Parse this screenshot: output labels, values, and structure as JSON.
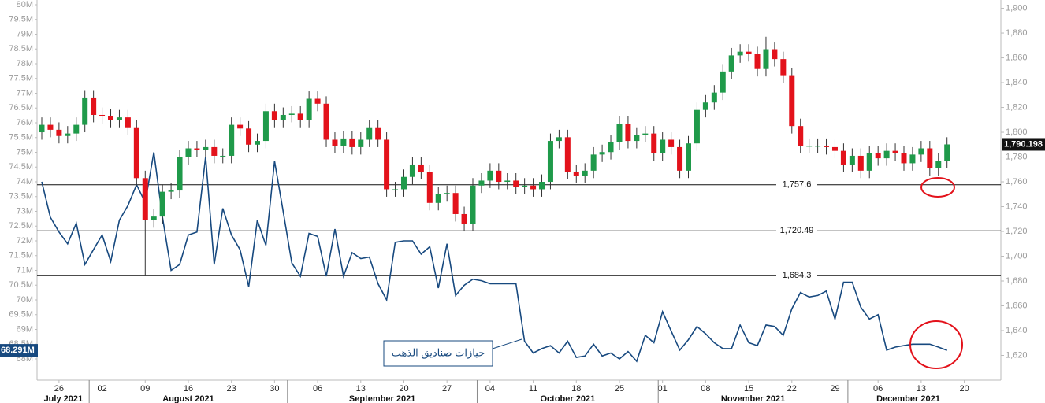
{
  "chart_data": {
    "type": "candlestick",
    "categories": [
      "2021-07-22",
      "2021-07-23",
      "2021-07-26",
      "2021-07-27",
      "2021-07-28",
      "2021-07-29",
      "2021-07-30",
      "2021-08-02",
      "2021-08-03",
      "2021-08-04",
      "2021-08-05",
      "2021-08-06",
      "2021-08-09",
      "2021-08-10",
      "2021-08-11",
      "2021-08-12",
      "2021-08-13",
      "2021-08-16",
      "2021-08-17",
      "2021-08-18",
      "2021-08-19",
      "2021-08-20",
      "2021-08-23",
      "2021-08-24",
      "2021-08-25",
      "2021-08-26",
      "2021-08-27",
      "2021-08-30",
      "2021-08-31",
      "2021-09-01",
      "2021-09-02",
      "2021-09-03",
      "2021-09-06",
      "2021-09-07",
      "2021-09-08",
      "2021-09-09",
      "2021-09-10",
      "2021-09-13",
      "2021-09-14",
      "2021-09-15",
      "2021-09-16",
      "2021-09-17",
      "2021-09-20",
      "2021-09-21",
      "2021-09-22",
      "2021-09-23",
      "2021-09-24",
      "2021-09-27",
      "2021-09-28",
      "2021-09-29",
      "2021-09-30",
      "2021-10-01",
      "2021-10-04",
      "2021-10-05",
      "2021-10-06",
      "2021-10-07",
      "2021-10-08",
      "2021-10-11",
      "2021-10-12",
      "2021-10-13",
      "2021-10-14",
      "2021-10-15",
      "2021-10-18",
      "2021-10-19",
      "2021-10-20",
      "2021-10-21",
      "2021-10-22",
      "2021-10-25",
      "2021-10-26",
      "2021-10-27",
      "2021-10-28",
      "2021-10-29",
      "2021-11-01",
      "2021-11-02",
      "2021-11-03",
      "2021-11-04",
      "2021-11-05",
      "2021-11-08",
      "2021-11-09",
      "2021-11-10",
      "2021-11-11",
      "2021-11-12",
      "2021-11-15",
      "2021-11-16",
      "2021-11-17",
      "2021-11-18",
      "2021-11-19",
      "2021-11-22",
      "2021-11-23",
      "2021-11-24",
      "2021-11-25",
      "2021-11-26",
      "2021-11-29",
      "2021-11-30",
      "2021-12-01",
      "2021-12-02",
      "2021-12-03",
      "2021-12-06",
      "2021-12-07",
      "2021-12-08",
      "2021-12-09",
      "2021-12-10",
      "2021-12-13",
      "2021-12-14",
      "2021-12-15",
      "2021-12-16"
    ],
    "candles": {
      "axis": "y2",
      "up_color": "#1f9a4a",
      "down_color": "#e3121b",
      "last_label": "1,790.198",
      "open": [
        1800,
        1806,
        1802,
        1797,
        1799,
        1806,
        1828,
        1814,
        1813,
        1810,
        1812,
        1804,
        1763,
        1729,
        1732,
        1752,
        1753,
        1780,
        1787,
        1786,
        1788,
        1781,
        1781,
        1806,
        1803,
        1790,
        1793,
        1817,
        1810,
        1814,
        1815,
        1810,
        1827,
        1823,
        1794,
        1789,
        1795,
        1788,
        1794,
        1804,
        1794,
        1754,
        1754,
        1764,
        1774,
        1768,
        1743,
        1750,
        1751,
        1734,
        1726,
        1757,
        1761,
        1769,
        1760,
        1761,
        1756,
        1757,
        1754,
        1760,
        1793,
        1796,
        1768,
        1765,
        1769,
        1782,
        1784,
        1792,
        1807,
        1793,
        1798,
        1799,
        1783,
        1794,
        1788,
        1769,
        1791,
        1818,
        1824,
        1832,
        1849,
        1862,
        1865,
        1863,
        1851,
        1867,
        1859,
        1846,
        1805,
        1789,
        1789,
        1789,
        1788,
        1785,
        1774,
        1781,
        1769,
        1783,
        1779,
        1785,
        1783,
        1775,
        1782,
        1787,
        1771,
        1777
      ],
      "high": [
        1812,
        1812,
        1808,
        1805,
        1812,
        1834,
        1834,
        1820,
        1819,
        1818,
        1818,
        1810,
        1769,
        1738,
        1758,
        1759,
        1786,
        1793,
        1793,
        1794,
        1794,
        1787,
        1812,
        1812,
        1809,
        1799,
        1823,
        1823,
        1820,
        1821,
        1821,
        1833,
        1833,
        1829,
        1800,
        1801,
        1801,
        1800,
        1810,
        1810,
        1800,
        1760,
        1770,
        1780,
        1780,
        1774,
        1756,
        1757,
        1757,
        1740,
        1763,
        1767,
        1775,
        1775,
        1767,
        1767,
        1763,
        1763,
        1766,
        1799,
        1802,
        1802,
        1774,
        1775,
        1788,
        1790,
        1798,
        1813,
        1813,
        1804,
        1805,
        1805,
        1800,
        1800,
        1794,
        1797,
        1824,
        1830,
        1838,
        1855,
        1868,
        1871,
        1871,
        1869,
        1877,
        1873,
        1865,
        1852,
        1811,
        1795,
        1795,
        1795,
        1794,
        1791,
        1787,
        1787,
        1789,
        1789,
        1791,
        1791,
        1789,
        1788,
        1793,
        1793,
        1783,
        1796
      ],
      "low": [
        1794,
        1796,
        1791,
        1791,
        1793,
        1800,
        1808,
        1807,
        1804,
        1804,
        1798,
        1757,
        1684,
        1723,
        1726,
        1746,
        1747,
        1774,
        1780,
        1780,
        1775,
        1775,
        1775,
        1797,
        1784,
        1784,
        1787,
        1804,
        1804,
        1808,
        1804,
        1804,
        1817,
        1788,
        1783,
        1783,
        1782,
        1782,
        1788,
        1788,
        1748,
        1748,
        1748,
        1758,
        1762,
        1737,
        1737,
        1744,
        1728,
        1720,
        1720,
        1751,
        1755,
        1754,
        1754,
        1750,
        1750,
        1748,
        1748,
        1754,
        1787,
        1762,
        1759,
        1759,
        1763,
        1776,
        1778,
        1786,
        1787,
        1787,
        1792,
        1777,
        1777,
        1782,
        1763,
        1763,
        1785,
        1812,
        1818,
        1826,
        1843,
        1856,
        1857,
        1845,
        1845,
        1853,
        1840,
        1799,
        1783,
        1783,
        1783,
        1782,
        1779,
        1768,
        1768,
        1763,
        1763,
        1773,
        1773,
        1777,
        1769,
        1769,
        1776,
        1765,
        1765,
        1771
      ],
      "close": [
        1806,
        1802,
        1797,
        1799,
        1806,
        1828,
        1814,
        1813,
        1810,
        1812,
        1804,
        1763,
        1729,
        1732,
        1752,
        1753,
        1780,
        1787,
        1786,
        1788,
        1781,
        1781,
        1806,
        1803,
        1790,
        1793,
        1817,
        1810,
        1814,
        1815,
        1810,
        1827,
        1823,
        1794,
        1789,
        1795,
        1788,
        1794,
        1804,
        1794,
        1754,
        1754,
        1764,
        1774,
        1768,
        1743,
        1750,
        1751,
        1734,
        1726,
        1757,
        1761,
        1769,
        1760,
        1761,
        1756,
        1757,
        1754,
        1760,
        1793,
        1796,
        1768,
        1765,
        1769,
        1782,
        1784,
        1792,
        1807,
        1793,
        1798,
        1799,
        1783,
        1794,
        1788,
        1769,
        1791,
        1818,
        1824,
        1832,
        1849,
        1862,
        1865,
        1863,
        1851,
        1867,
        1859,
        1846,
        1805,
        1789,
        1789,
        1789,
        1788,
        1785,
        1774,
        1781,
        1769,
        1783,
        1779,
        1785,
        1783,
        1775,
        1782,
        1787,
        1771,
        1777,
        1790.198
      ]
    },
    "line": {
      "color": "#17497f",
      "last_label": "68.291M",
      "annotation": "حيازات صناديق الذهب",
      "values": [
        74.0,
        72.8,
        72.3,
        71.9,
        72.6,
        71.2,
        71.7,
        72.2,
        71.3,
        72.7,
        73.2,
        73.9,
        73.3,
        75.0,
        72.8,
        71.0,
        71.2,
        72.2,
        72.3,
        74.85,
        71.2,
        73.1,
        72.2,
        71.7,
        70.45,
        72.7,
        71.85,
        74.7,
        73.0,
        71.25,
        70.8,
        72.25,
        72.15,
        70.8,
        72.4,
        70.8,
        71.6,
        71.4,
        71.45,
        70.55,
        70.0,
        71.95,
        72.0,
        72.0,
        71.55,
        71.8,
        70.4,
        71.9,
        70.15,
        70.5,
        70.7,
        70.65,
        70.55,
        70.55,
        70.55,
        70.55,
        68.6,
        68.2,
        68.35,
        68.45,
        68.2,
        68.6,
        68.05,
        68.1,
        68.5,
        68.1,
        68.2,
        68.0,
        68.25,
        67.92,
        68.8,
        68.55,
        69.6,
        68.95,
        68.3,
        68.65,
        69.1,
        68.85,
        68.55,
        68.35,
        68.35,
        69.15,
        68.55,
        68.45,
        69.15,
        69.1,
        68.8,
        69.7,
        70.25,
        70.1,
        70.15,
        70.3,
        69.35,
        70.6,
        70.6,
        69.75,
        69.35,
        69.5,
        68.3,
        68.4,
        68.45,
        68.5,
        68.5,
        68.5,
        68.4,
        68.291
      ]
    },
    "levels": [
      {
        "value": 1757.6,
        "label": "1,757.6"
      },
      {
        "value": 1720.49,
        "label": "1,720.49"
      },
      {
        "value": 1684.3,
        "label": "1,684.3"
      }
    ],
    "ylim": [
      67.28,
      80.16
    ],
    "yticks": [
      {
        "value": 68,
        "label": "68M"
      },
      {
        "value": 68.5,
        "label": "68.5M"
      },
      {
        "value": 69,
        "label": "69M"
      },
      {
        "value": 69.5,
        "label": "69.5M"
      },
      {
        "value": 70,
        "label": "70M"
      },
      {
        "value": 70.5,
        "label": "70.5M"
      },
      {
        "value": 71,
        "label": "71M"
      },
      {
        "value": 71.5,
        "label": "71.5M"
      },
      {
        "value": 72,
        "label": "72M"
      },
      {
        "value": 72.5,
        "label": "72.5M"
      },
      {
        "value": 73,
        "label": "73M"
      },
      {
        "value": 73.5,
        "label": "73.5M"
      },
      {
        "value": 74,
        "label": "74M"
      },
      {
        "value": 74.5,
        "label": "74.5M"
      },
      {
        "value": 75,
        "label": "75M"
      },
      {
        "value": 75.5,
        "label": "75.5M"
      },
      {
        "value": 76,
        "label": "76M"
      },
      {
        "value": 76.5,
        "label": "76.5M"
      },
      {
        "value": 77,
        "label": "77M"
      },
      {
        "value": 77.5,
        "label": "77.5M"
      },
      {
        "value": 78,
        "label": "78M"
      },
      {
        "value": 78.5,
        "label": "78.5M"
      },
      {
        "value": 79,
        "label": "79M"
      },
      {
        "value": 79.5,
        "label": "79.5M"
      },
      {
        "value": 80,
        "label": "80M"
      }
    ],
    "y2lim": [
      1600,
      1906.7
    ],
    "y2ticks": [
      {
        "value": 1620,
        "label": "1,620"
      },
      {
        "value": 1640,
        "label": "1,640"
      },
      {
        "value": 1660,
        "label": "1,660"
      },
      {
        "value": 1680,
        "label": "1,680"
      },
      {
        "value": 1700,
        "label": "1,700"
      },
      {
        "value": 1720,
        "label": "1,720"
      },
      {
        "value": 1740,
        "label": "1,740"
      },
      {
        "value": 1760,
        "label": "1,760"
      },
      {
        "value": 1780,
        "label": "1,780"
      },
      {
        "value": 1800,
        "label": "1,800"
      },
      {
        "value": 1820,
        "label": "1,820"
      },
      {
        "value": 1840,
        "label": "1,840"
      },
      {
        "value": 1860,
        "label": "1,860"
      },
      {
        "value": 1880,
        "label": "1,880"
      },
      {
        "value": 1900,
        "label": "1,900"
      }
    ],
    "xticks": [
      {
        "value": "2021-07-26",
        "label": "26"
      },
      {
        "value": "2021-08-02",
        "label": "02"
      },
      {
        "value": "2021-08-09",
        "label": "09"
      },
      {
        "value": "2021-08-16",
        "label": "16"
      },
      {
        "value": "2021-08-23",
        "label": "23"
      },
      {
        "value": "2021-08-30",
        "label": "30"
      },
      {
        "value": "2021-09-06",
        "label": "06"
      },
      {
        "value": "2021-09-13",
        "label": "13"
      },
      {
        "value": "2021-09-20",
        "label": "20"
      },
      {
        "value": "2021-09-27",
        "label": "27"
      },
      {
        "value": "2021-10-04",
        "label": "04"
      },
      {
        "value": "2021-10-11",
        "label": "11"
      },
      {
        "value": "2021-10-18",
        "label": "18"
      },
      {
        "value": "2021-10-25",
        "label": "25"
      },
      {
        "value": "2021-11-01",
        "label": "01"
      },
      {
        "value": "2021-11-08",
        "label": "08"
      },
      {
        "value": "2021-11-15",
        "label": "15"
      },
      {
        "value": "2021-11-22",
        "label": "22"
      },
      {
        "value": "2021-11-29",
        "label": "29"
      },
      {
        "value": "2021-12-06",
        "label": "06"
      },
      {
        "value": "2021-12-13",
        "label": "13"
      },
      {
        "value": "2021-12-20",
        "label": "20"
      }
    ],
    "months": [
      {
        "value": "2021-07",
        "label": "July 2021"
      },
      {
        "value": "2021-08",
        "label": "August 2021"
      },
      {
        "value": "2021-09",
        "label": "September 2021"
      },
      {
        "value": "2021-10",
        "label": "October 2021"
      },
      {
        "value": "2021-11",
        "label": "November 2021"
      },
      {
        "value": "2021-12",
        "label": "December 2021"
      }
    ]
  }
}
